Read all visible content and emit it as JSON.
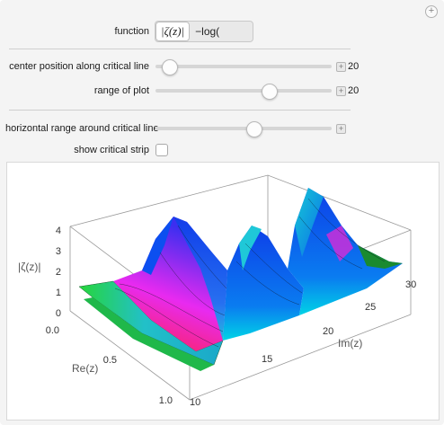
{
  "controls": {
    "function_label": "function",
    "function_options": [
      "|ζ(z)|",
      "−log("
    ],
    "center_label": "center position along critical line",
    "center_value": "20",
    "center_fraction": 0.05,
    "range_label": "range of plot",
    "range_value": "20",
    "range_fraction": 0.6,
    "horizontal_label": "horizontal range around critical line",
    "horizontal_fraction": 0.55,
    "strip_label": "show critical strip"
  },
  "plot": {
    "z_axis_label": "|ζ(z)|",
    "z_ticks": [
      "4",
      "3",
      "2",
      "1",
      "0"
    ],
    "re_axis_label": "Re(z)",
    "re_ticks": [
      "0.0",
      "0.5",
      "1.0"
    ],
    "im_axis_label": "Im(z)",
    "im_ticks": [
      "10",
      "15",
      "20",
      "25",
      "30"
    ]
  }
}
